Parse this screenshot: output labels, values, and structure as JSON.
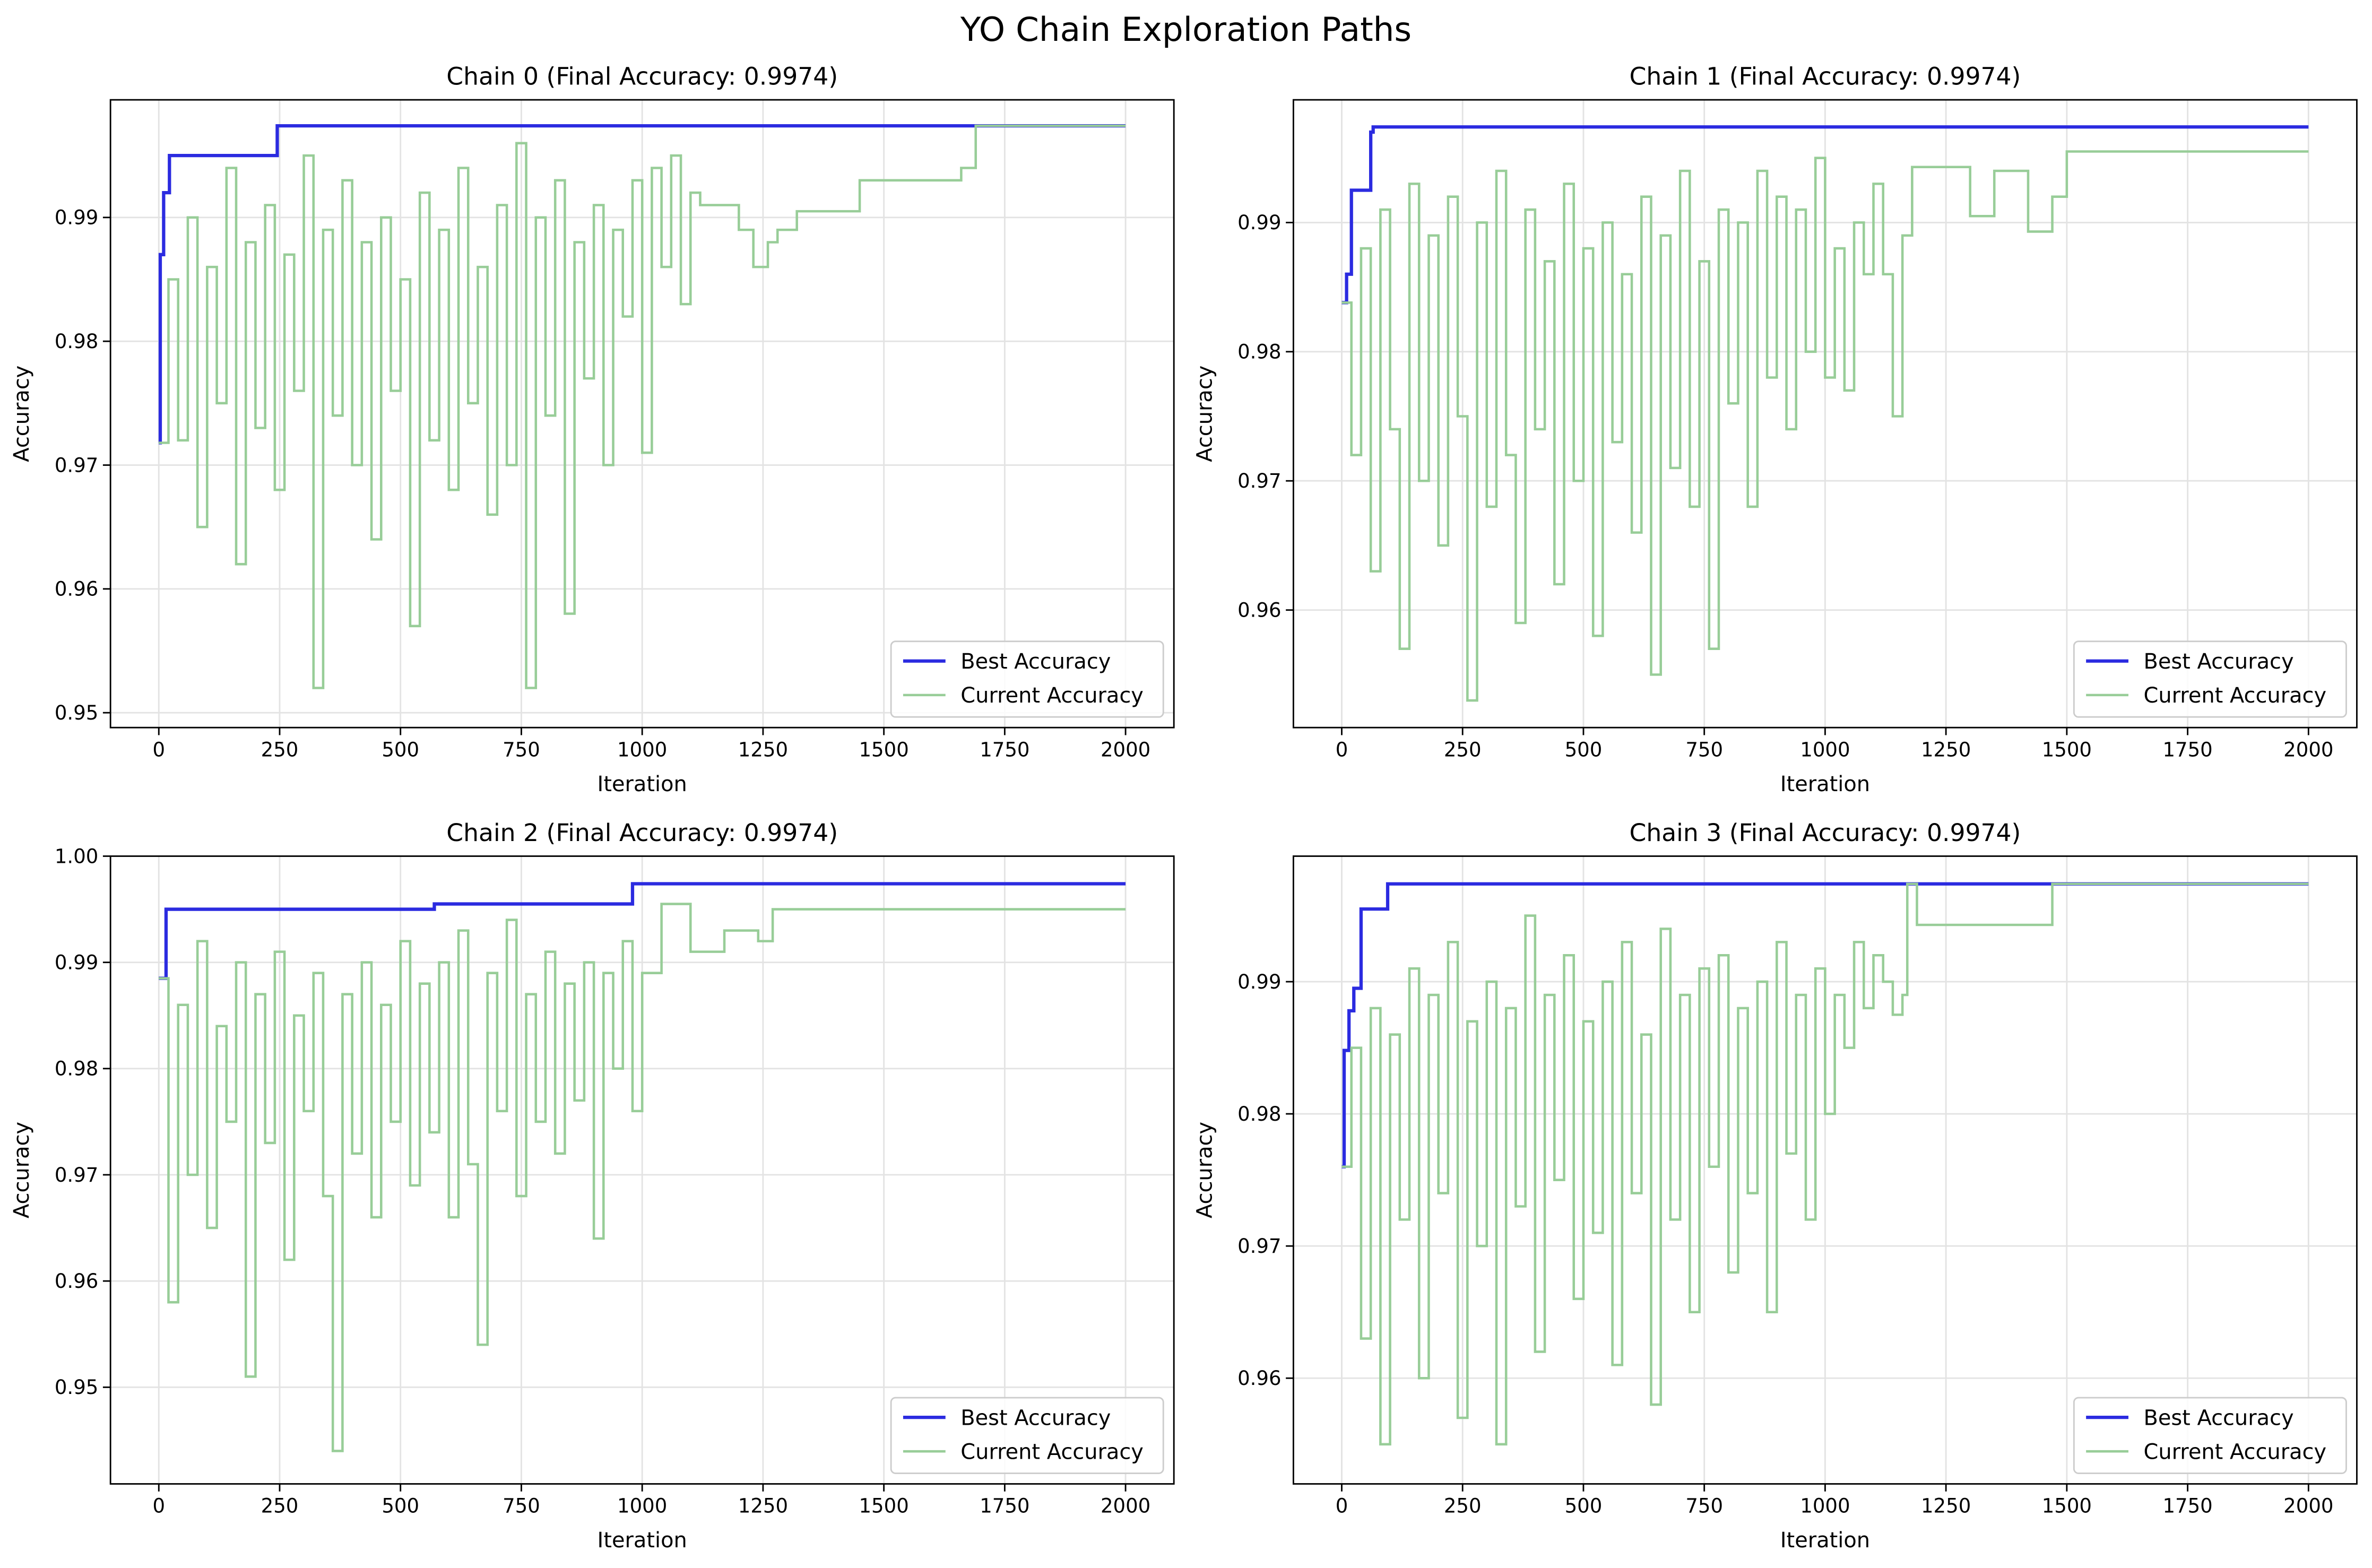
{
  "title": "YO Chain Exploration Paths",
  "chart_data": [
    {
      "type": "line",
      "title": "Chain 0 (Final Accuracy: 0.9974)",
      "xlabel": "Iteration",
      "ylabel": "Accuracy",
      "xlim": [
        -100,
        2100
      ],
      "ylim": [
        0.9488,
        0.9995
      ],
      "xticks": [
        0,
        250,
        500,
        750,
        1000,
        1250,
        1500,
        1750,
        2000
      ],
      "yticks": [
        0.95,
        0.96,
        0.97,
        0.98,
        0.99
      ],
      "grid": true,
      "legend": "lower right",
      "drawstyle": "steps-post",
      "series": [
        {
          "name": "Best Accuracy",
          "color": "#2b2be0",
          "x": [
            0,
            3,
            10,
            22,
            245,
            2000
          ],
          "values": [
            0.9718,
            0.987,
            0.992,
            0.995,
            0.9974,
            0.9974
          ]
        },
        {
          "name": "Current Accuracy",
          "color": "#98cd98",
          "x": [
            0,
            20,
            40,
            60,
            80,
            100,
            120,
            140,
            160,
            180,
            200,
            220,
            240,
            260,
            280,
            300,
            320,
            340,
            360,
            380,
            400,
            420,
            440,
            460,
            480,
            500,
            520,
            540,
            560,
            580,
            600,
            620,
            640,
            660,
            680,
            700,
            720,
            740,
            760,
            780,
            800,
            820,
            840,
            860,
            880,
            900,
            920,
            940,
            960,
            980,
            1000,
            1020,
            1040,
            1060,
            1080,
            1100,
            1120,
            1200,
            1230,
            1260,
            1280,
            1320,
            1380,
            1450,
            1600,
            1660,
            1690,
            2000
          ],
          "values": [
            0.9718,
            0.985,
            0.972,
            0.99,
            0.965,
            0.986,
            0.975,
            0.994,
            0.962,
            0.988,
            0.973,
            0.991,
            0.968,
            0.987,
            0.976,
            0.995,
            0.952,
            0.989,
            0.974,
            0.993,
            0.97,
            0.988,
            0.964,
            0.99,
            0.976,
            0.985,
            0.957,
            0.992,
            0.972,
            0.989,
            0.968,
            0.994,
            0.975,
            0.986,
            0.966,
            0.991,
            0.97,
            0.996,
            0.952,
            0.99,
            0.974,
            0.993,
            0.958,
            0.988,
            0.977,
            0.991,
            0.97,
            0.989,
            0.982,
            0.993,
            0.971,
            0.994,
            0.986,
            0.995,
            0.983,
            0.992,
            0.991,
            0.989,
            0.986,
            0.988,
            0.989,
            0.9905,
            0.9905,
            0.993,
            0.993,
            0.994,
            0.9974,
            0.9974
          ]
        }
      ]
    },
    {
      "type": "line",
      "title": "Chain 1 (Final Accuracy: 0.9974)",
      "xlabel": "Iteration",
      "ylabel": "Accuracy",
      "xlim": [
        -100,
        2100
      ],
      "ylim": [
        0.9509,
        0.9995
      ],
      "xticks": [
        0,
        250,
        500,
        750,
        1000,
        1250,
        1500,
        1750,
        2000
      ],
      "yticks": [
        0.96,
        0.97,
        0.98,
        0.99
      ],
      "grid": true,
      "legend": "lower right",
      "drawstyle": "steps-post",
      "series": [
        {
          "name": "Best Accuracy",
          "color": "#2b2be0",
          "x": [
            0,
            10,
            20,
            60,
            65,
            2000
          ],
          "values": [
            0.9838,
            0.986,
            0.9925,
            0.997,
            0.9974,
            0.9974
          ]
        },
        {
          "name": "Current Accuracy",
          "color": "#98cd98",
          "x": [
            0,
            20,
            40,
            60,
            80,
            100,
            120,
            140,
            160,
            180,
            200,
            220,
            240,
            260,
            280,
            300,
            320,
            340,
            360,
            380,
            400,
            420,
            440,
            460,
            480,
            500,
            520,
            540,
            560,
            580,
            600,
            620,
            640,
            660,
            680,
            700,
            720,
            740,
            760,
            780,
            800,
            820,
            840,
            860,
            880,
            900,
            920,
            940,
            960,
            980,
            1000,
            1020,
            1040,
            1060,
            1080,
            1100,
            1120,
            1140,
            1160,
            1180,
            1190,
            1300,
            1350,
            1420,
            1470,
            1500,
            2000
          ],
          "values": [
            0.9838,
            0.972,
            0.988,
            0.963,
            0.991,
            0.974,
            0.957,
            0.993,
            0.97,
            0.989,
            0.965,
            0.992,
            0.975,
            0.953,
            0.99,
            0.968,
            0.994,
            0.972,
            0.959,
            0.991,
            0.974,
            0.987,
            0.962,
            0.993,
            0.97,
            0.988,
            0.958,
            0.99,
            0.973,
            0.986,
            0.966,
            0.992,
            0.955,
            0.989,
            0.971,
            0.994,
            0.968,
            0.987,
            0.957,
            0.991,
            0.976,
            0.99,
            0.968,
            0.994,
            0.978,
            0.992,
            0.974,
            0.991,
            0.98,
            0.995,
            0.978,
            0.988,
            0.977,
            0.99,
            0.986,
            0.993,
            0.986,
            0.975,
            0.989,
            0.9943,
            0.9943,
            0.9905,
            0.994,
            0.9893,
            0.992,
            0.9955,
            0.9955
          ]
        }
      ]
    },
    {
      "type": "line",
      "title": "Chain 2 (Final Accuracy: 0.9974)",
      "xlabel": "Iteration",
      "ylabel": "Accuracy",
      "xlim": [
        -100,
        2100
      ],
      "ylim": [
        0.9409,
        1.0
      ],
      "xticks": [
        0,
        250,
        500,
        750,
        1000,
        1250,
        1500,
        1750,
        2000
      ],
      "yticks": [
        0.95,
        0.96,
        0.97,
        0.98,
        0.99,
        {
          "value": 1.0,
          "label": "1.00"
        }
      ],
      "grid": true,
      "legend": "lower right",
      "drawstyle": "steps-post",
      "series": [
        {
          "name": "Best Accuracy",
          "color": "#2b2be0",
          "x": [
            0,
            15,
            570,
            980,
            2000
          ],
          "values": [
            0.9885,
            0.995,
            0.9955,
            0.9974,
            0.9974
          ]
        },
        {
          "name": "Current Accuracy",
          "color": "#98cd98",
          "x": [
            0,
            20,
            40,
            60,
            80,
            100,
            120,
            140,
            160,
            180,
            200,
            220,
            240,
            260,
            280,
            300,
            320,
            340,
            360,
            380,
            400,
            420,
            440,
            460,
            480,
            500,
            520,
            540,
            560,
            580,
            600,
            620,
            640,
            660,
            680,
            700,
            720,
            740,
            760,
            780,
            800,
            820,
            840,
            860,
            880,
            900,
            920,
            940,
            960,
            980,
            1000,
            1040,
            1100,
            1170,
            1240,
            1270,
            2000
          ],
          "values": [
            0.9885,
            0.958,
            0.986,
            0.97,
            0.992,
            0.965,
            0.984,
            0.975,
            0.99,
            0.951,
            0.987,
            0.973,
            0.991,
            0.962,
            0.985,
            0.976,
            0.989,
            0.968,
            0.944,
            0.987,
            0.972,
            0.99,
            0.966,
            0.986,
            0.975,
            0.992,
            0.969,
            0.988,
            0.974,
            0.99,
            0.966,
            0.993,
            0.971,
            0.954,
            0.989,
            0.976,
            0.994,
            0.968,
            0.987,
            0.975,
            0.991,
            0.972,
            0.988,
            0.977,
            0.99,
            0.964,
            0.989,
            0.98,
            0.992,
            0.976,
            0.989,
            0.9955,
            0.991,
            0.993,
            0.992,
            0.995,
            0.995
          ]
        }
      ]
    },
    {
      "type": "line",
      "title": "Chain 3 (Final Accuracy: 0.9974)",
      "xlabel": "Iteration",
      "ylabel": "Accuracy",
      "xlim": [
        -100,
        2100
      ],
      "ylim": [
        0.952,
        0.9995
      ],
      "xticks": [
        0,
        250,
        500,
        750,
        1000,
        1250,
        1500,
        1750,
        2000
      ],
      "yticks": [
        0.96,
        0.97,
        0.98,
        0.99
      ],
      "grid": true,
      "legend": "lower right",
      "drawstyle": "steps-post",
      "series": [
        {
          "name": "Best Accuracy",
          "color": "#2b2be0",
          "x": [
            0,
            5,
            15,
            25,
            40,
            95,
            2000
          ],
          "values": [
            0.976,
            0.9848,
            0.9878,
            0.9895,
            0.9955,
            0.9974,
            0.9974
          ]
        },
        {
          "name": "Current Accuracy",
          "color": "#98cd98",
          "x": [
            0,
            20,
            40,
            60,
            80,
            100,
            120,
            140,
            160,
            180,
            200,
            220,
            240,
            260,
            280,
            300,
            320,
            340,
            360,
            380,
            400,
            420,
            440,
            460,
            480,
            500,
            520,
            540,
            560,
            580,
            600,
            620,
            640,
            660,
            680,
            700,
            720,
            740,
            760,
            780,
            800,
            820,
            840,
            860,
            880,
            900,
            920,
            940,
            960,
            980,
            1000,
            1020,
            1040,
            1060,
            1080,
            1100,
            1120,
            1140,
            1160,
            1170,
            1190,
            1470,
            2000
          ],
          "values": [
            0.976,
            0.985,
            0.963,
            0.988,
            0.955,
            0.986,
            0.972,
            0.991,
            0.96,
            0.989,
            0.974,
            0.993,
            0.957,
            0.987,
            0.97,
            0.99,
            0.955,
            0.988,
            0.973,
            0.995,
            0.962,
            0.989,
            0.975,
            0.992,
            0.966,
            0.987,
            0.971,
            0.99,
            0.961,
            0.993,
            0.974,
            0.986,
            0.958,
            0.994,
            0.972,
            0.989,
            0.965,
            0.991,
            0.976,
            0.992,
            0.968,
            0.988,
            0.974,
            0.99,
            0.965,
            0.993,
            0.977,
            0.989,
            0.972,
            0.991,
            0.98,
            0.989,
            0.985,
            0.993,
            0.988,
            0.992,
            0.99,
            0.9875,
            0.989,
            0.9974,
            0.9943,
            0.9974,
            0.9974
          ]
        }
      ]
    }
  ]
}
